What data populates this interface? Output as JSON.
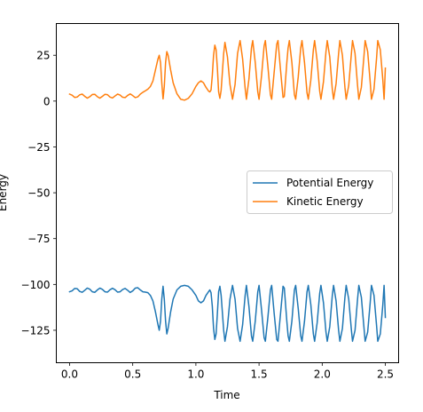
{
  "chart_data": {
    "type": "line",
    "title": "",
    "xlabel": "Time",
    "ylabel": "Energy",
    "xlim": [
      -0.105,
      2.605
    ],
    "ylim": [
      -142.7,
      42.3
    ],
    "xticks": [
      0.0,
      0.5,
      1.0,
      1.5,
      2.0,
      2.5
    ],
    "xtick_labels": [
      "0.0",
      "0.5",
      "1.0",
      "1.5",
      "2.0",
      "2.5"
    ],
    "yticks": [
      25,
      0,
      -25,
      -50,
      -75,
      -100,
      -125
    ],
    "ytick_labels": [
      "25",
      "0",
      "−25",
      "−50",
      "−75",
      "−100",
      "−125"
    ],
    "grid": false,
    "legend_position": "center-right",
    "series": [
      {
        "name": "Potential Energy",
        "color": "#1f77b4",
        "points": [
          [
            0.0,
            -104.0
          ],
          [
            0.02,
            -103.5
          ],
          [
            0.04,
            -102.2
          ],
          [
            0.06,
            -102.3
          ],
          [
            0.08,
            -103.8
          ],
          [
            0.1,
            -104.3
          ],
          [
            0.12,
            -103.2
          ],
          [
            0.14,
            -102.0
          ],
          [
            0.16,
            -102.6
          ],
          [
            0.18,
            -104.0
          ],
          [
            0.2,
            -104.3
          ],
          [
            0.22,
            -103.0
          ],
          [
            0.24,
            -102.0
          ],
          [
            0.26,
            -102.7
          ],
          [
            0.28,
            -104.0
          ],
          [
            0.3,
            -104.2
          ],
          [
            0.32,
            -102.9
          ],
          [
            0.34,
            -102.1
          ],
          [
            0.36,
            -102.9
          ],
          [
            0.38,
            -104.2
          ],
          [
            0.4,
            -104.0
          ],
          [
            0.42,
            -102.8
          ],
          [
            0.44,
            -102.2
          ],
          [
            0.46,
            -103.2
          ],
          [
            0.48,
            -104.4
          ],
          [
            0.5,
            -103.5
          ],
          [
            0.52,
            -102.0
          ],
          [
            0.54,
            -101.8
          ],
          [
            0.56,
            -103.0
          ],
          [
            0.58,
            -104.0
          ],
          [
            0.6,
            -104.2
          ],
          [
            0.62,
            -104.5
          ],
          [
            0.64,
            -106.0
          ],
          [
            0.66,
            -109.0
          ],
          [
            0.68,
            -115.0
          ],
          [
            0.7,
            -122.0
          ],
          [
            0.71,
            -125.0
          ],
          [
            0.72,
            -120.0
          ],
          [
            0.73,
            -108.0
          ],
          [
            0.74,
            -101.0
          ],
          [
            0.75,
            -108.0
          ],
          [
            0.76,
            -120.0
          ],
          [
            0.77,
            -127.0
          ],
          [
            0.78,
            -124.0
          ],
          [
            0.8,
            -115.0
          ],
          [
            0.82,
            -108.0
          ],
          [
            0.85,
            -103.0
          ],
          [
            0.88,
            -101.0
          ],
          [
            0.91,
            -100.5
          ],
          [
            0.94,
            -101.0
          ],
          [
            0.97,
            -103.0
          ],
          [
            1.0,
            -106.0
          ],
          [
            1.02,
            -109.0
          ],
          [
            1.04,
            -110.0
          ],
          [
            1.06,
            -109.0
          ],
          [
            1.08,
            -106.0
          ],
          [
            1.1,
            -104.0
          ],
          [
            1.11,
            -103.0
          ],
          [
            1.12,
            -104.5
          ],
          [
            1.13,
            -112.0
          ],
          [
            1.14,
            -124.0
          ],
          [
            1.15,
            -130.0
          ],
          [
            1.16,
            -127.0
          ],
          [
            1.17,
            -116.0
          ],
          [
            1.18,
            -104.0
          ],
          [
            1.19,
            -101.0
          ],
          [
            1.2,
            -106.0
          ],
          [
            1.22,
            -125.0
          ],
          [
            1.23,
            -131.0
          ],
          [
            1.25,
            -123.0
          ],
          [
            1.27,
            -108.0
          ],
          [
            1.29,
            -100.5
          ],
          [
            1.31,
            -108.0
          ],
          [
            1.33,
            -124.0
          ],
          [
            1.35,
            -131.0
          ],
          [
            1.37,
            -122.0
          ],
          [
            1.39,
            -106.0
          ],
          [
            1.4,
            -100.5
          ],
          [
            1.42,
            -112.0
          ],
          [
            1.44,
            -128.0
          ],
          [
            1.45,
            -131.0
          ],
          [
            1.47,
            -120.0
          ],
          [
            1.49,
            -104.0
          ],
          [
            1.5,
            -100.5
          ],
          [
            1.52,
            -114.0
          ],
          [
            1.54,
            -129.0
          ],
          [
            1.55,
            -131.0
          ],
          [
            1.57,
            -118.0
          ],
          [
            1.59,
            -103.0
          ],
          [
            1.6,
            -100.5
          ],
          [
            1.62,
            -116.0
          ],
          [
            1.64,
            -130.0
          ],
          [
            1.65,
            -131.0
          ],
          [
            1.67,
            -116.0
          ],
          [
            1.69,
            -101.0
          ],
          [
            1.7,
            -102.0
          ],
          [
            1.72,
            -120.0
          ],
          [
            1.73,
            -128.0
          ],
          [
            1.74,
            -131.0
          ],
          [
            1.76,
            -120.0
          ],
          [
            1.78,
            -103.0
          ],
          [
            1.79,
            -100.5
          ],
          [
            1.81,
            -113.0
          ],
          [
            1.83,
            -128.0
          ],
          [
            1.84,
            -131.0
          ],
          [
            1.86,
            -120.0
          ],
          [
            1.88,
            -104.0
          ],
          [
            1.89,
            -100.5
          ],
          [
            1.91,
            -111.0
          ],
          [
            1.93,
            -127.0
          ],
          [
            1.94,
            -131.0
          ],
          [
            1.96,
            -121.0
          ],
          [
            1.98,
            -105.0
          ],
          [
            1.99,
            -100.5
          ],
          [
            2.01,
            -110.0
          ],
          [
            2.03,
            -126.0
          ],
          [
            2.04,
            -131.0
          ],
          [
            2.06,
            -123.0
          ],
          [
            2.08,
            -106.0
          ],
          [
            2.09,
            -100.5
          ],
          [
            2.11,
            -109.0
          ],
          [
            2.13,
            -125.0
          ],
          [
            2.14,
            -131.0
          ],
          [
            2.16,
            -124.0
          ],
          [
            2.18,
            -107.0
          ],
          [
            2.19,
            -100.5
          ],
          [
            2.21,
            -108.0
          ],
          [
            2.23,
            -124.0
          ],
          [
            2.24,
            -131.0
          ],
          [
            2.26,
            -125.0
          ],
          [
            2.28,
            -108.0
          ],
          [
            2.29,
            -100.5
          ],
          [
            2.31,
            -107.0
          ],
          [
            2.33,
            -123.0
          ],
          [
            2.34,
            -131.0
          ],
          [
            2.36,
            -126.0
          ],
          [
            2.38,
            -110.0
          ],
          [
            2.39,
            -100.5
          ],
          [
            2.41,
            -106.0
          ],
          [
            2.43,
            -122.0
          ],
          [
            2.44,
            -131.0
          ],
          [
            2.46,
            -127.0
          ],
          [
            2.48,
            -111.0
          ],
          [
            2.49,
            -100.5
          ],
          [
            2.5,
            -118.0
          ]
        ]
      },
      {
        "name": "Kinetic Energy",
        "color": "#ff7f0e",
        "points": [
          [
            0.0,
            3.8
          ],
          [
            0.02,
            3.2
          ],
          [
            0.04,
            2.0
          ],
          [
            0.06,
            2.2
          ],
          [
            0.08,
            3.4
          ],
          [
            0.1,
            3.8
          ],
          [
            0.12,
            2.6
          ],
          [
            0.14,
            1.6
          ],
          [
            0.16,
            2.4
          ],
          [
            0.18,
            3.6
          ],
          [
            0.2,
            3.7
          ],
          [
            0.22,
            2.4
          ],
          [
            0.24,
            1.6
          ],
          [
            0.26,
            2.6
          ],
          [
            0.28,
            3.7
          ],
          [
            0.3,
            3.5
          ],
          [
            0.32,
            2.2
          ],
          [
            0.34,
            1.7
          ],
          [
            0.36,
            2.8
          ],
          [
            0.38,
            3.8
          ],
          [
            0.4,
            3.3
          ],
          [
            0.42,
            2.1
          ],
          [
            0.44,
            1.9
          ],
          [
            0.46,
            3.1
          ],
          [
            0.48,
            3.9
          ],
          [
            0.5,
            3.0
          ],
          [
            0.52,
            1.9
          ],
          [
            0.54,
            2.3
          ],
          [
            0.56,
            3.8
          ],
          [
            0.58,
            4.8
          ],
          [
            0.6,
            5.6
          ],
          [
            0.62,
            6.5
          ],
          [
            0.64,
            8.0
          ],
          [
            0.66,
            11.0
          ],
          [
            0.68,
            17.0
          ],
          [
            0.7,
            23.0
          ],
          [
            0.71,
            25.0
          ],
          [
            0.72,
            21.0
          ],
          [
            0.73,
            10.0
          ],
          [
            0.74,
            1.2
          ],
          [
            0.75,
            8.0
          ],
          [
            0.76,
            21.0
          ],
          [
            0.77,
            27.0
          ],
          [
            0.78,
            25.0
          ],
          [
            0.8,
            17.0
          ],
          [
            0.82,
            10.0
          ],
          [
            0.85,
            4.0
          ],
          [
            0.88,
            1.0
          ],
          [
            0.91,
            0.5
          ],
          [
            0.94,
            1.5
          ],
          [
            0.97,
            4.0
          ],
          [
            1.0,
            8.0
          ],
          [
            1.02,
            10.0
          ],
          [
            1.04,
            11.0
          ],
          [
            1.06,
            10.0
          ],
          [
            1.08,
            7.5
          ],
          [
            1.1,
            5.5
          ],
          [
            1.11,
            5.0
          ],
          [
            1.12,
            6.0
          ],
          [
            1.13,
            14.0
          ],
          [
            1.14,
            25.0
          ],
          [
            1.15,
            30.5
          ],
          [
            1.16,
            28.0
          ],
          [
            1.17,
            18.0
          ],
          [
            1.18,
            5.0
          ],
          [
            1.19,
            1.5
          ],
          [
            1.2,
            6.0
          ],
          [
            1.22,
            26.0
          ],
          [
            1.23,
            32.0
          ],
          [
            1.25,
            24.0
          ],
          [
            1.27,
            9.0
          ],
          [
            1.29,
            1.0
          ],
          [
            1.31,
            9.0
          ],
          [
            1.33,
            26.0
          ],
          [
            1.35,
            33.0
          ],
          [
            1.37,
            23.0
          ],
          [
            1.39,
            7.0
          ],
          [
            1.4,
            1.0
          ],
          [
            1.42,
            12.0
          ],
          [
            1.44,
            29.0
          ],
          [
            1.45,
            33.0
          ],
          [
            1.47,
            21.0
          ],
          [
            1.49,
            5.0
          ],
          [
            1.5,
            1.0
          ],
          [
            1.52,
            14.0
          ],
          [
            1.54,
            30.0
          ],
          [
            1.55,
            33.0
          ],
          [
            1.57,
            19.0
          ],
          [
            1.59,
            3.5
          ],
          [
            1.6,
            1.0
          ],
          [
            1.62,
            16.0
          ],
          [
            1.64,
            31.0
          ],
          [
            1.65,
            33.0
          ],
          [
            1.67,
            17.0
          ],
          [
            1.69,
            2.0
          ],
          [
            1.7,
            2.5
          ],
          [
            1.72,
            21.0
          ],
          [
            1.73,
            29.0
          ],
          [
            1.74,
            33.0
          ],
          [
            1.76,
            21.0
          ],
          [
            1.78,
            3.5
          ],
          [
            1.79,
            1.0
          ],
          [
            1.81,
            13.0
          ],
          [
            1.83,
            29.0
          ],
          [
            1.84,
            33.0
          ],
          [
            1.86,
            21.0
          ],
          [
            1.88,
            4.5
          ],
          [
            1.89,
            1.0
          ],
          [
            1.91,
            11.5
          ],
          [
            1.93,
            28.0
          ],
          [
            1.94,
            33.0
          ],
          [
            1.96,
            22.0
          ],
          [
            1.98,
            5.5
          ],
          [
            1.99,
            1.0
          ],
          [
            2.01,
            10.5
          ],
          [
            2.03,
            27.0
          ],
          [
            2.04,
            33.0
          ],
          [
            2.06,
            24.0
          ],
          [
            2.08,
            6.5
          ],
          [
            2.09,
            1.0
          ],
          [
            2.11,
            9.5
          ],
          [
            2.13,
            26.0
          ],
          [
            2.14,
            33.0
          ],
          [
            2.16,
            25.0
          ],
          [
            2.18,
            7.5
          ],
          [
            2.19,
            1.0
          ],
          [
            2.21,
            8.5
          ],
          [
            2.23,
            25.0
          ],
          [
            2.24,
            33.0
          ],
          [
            2.26,
            26.0
          ],
          [
            2.28,
            8.5
          ],
          [
            2.29,
            1.0
          ],
          [
            2.31,
            7.5
          ],
          [
            2.33,
            24.0
          ],
          [
            2.34,
            33.0
          ],
          [
            2.36,
            27.0
          ],
          [
            2.38,
            10.5
          ],
          [
            2.39,
            1.0
          ],
          [
            2.41,
            6.5
          ],
          [
            2.43,
            23.0
          ],
          [
            2.44,
            33.0
          ],
          [
            2.46,
            28.0
          ],
          [
            2.48,
            11.5
          ],
          [
            2.49,
            1.0
          ],
          [
            2.5,
            18.0
          ]
        ]
      }
    ]
  }
}
